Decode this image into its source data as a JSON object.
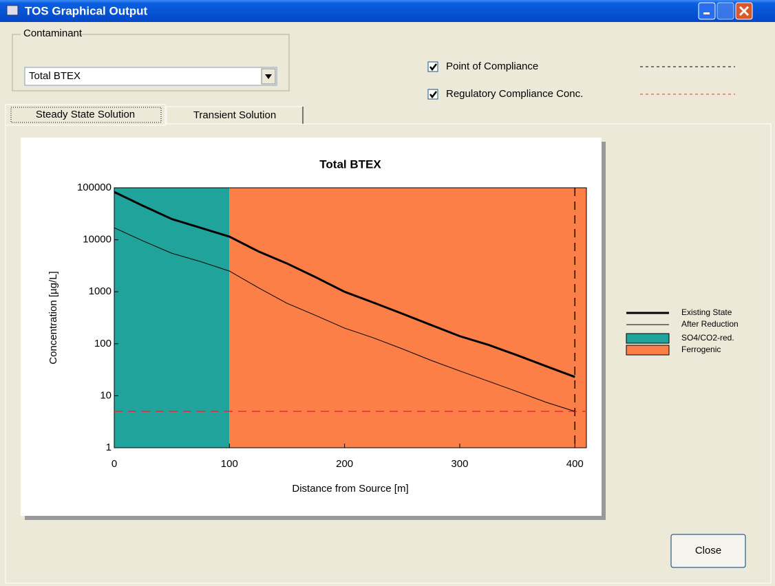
{
  "window": {
    "title": "TOS Graphical Output"
  },
  "contaminant": {
    "label": "Contaminant",
    "selected": "Total BTEX"
  },
  "options": [
    {
      "label": "Point of Compliance",
      "checked": true,
      "line_color": "#000000"
    },
    {
      "label": "Regulatory Compliance Conc.",
      "checked": true,
      "line_color": "#e03030"
    }
  ],
  "tabs": [
    "Steady State Solution",
    "Transient Solution"
  ],
  "close_button": "Close",
  "chart_data": {
    "type": "line",
    "title": "Total BTEX",
    "xlabel": "Distance from Source [m]",
    "ylabel": "Concentration  [µg/L]",
    "log_y": true,
    "xlim": [
      0,
      410
    ],
    "ylim": [
      1,
      100000
    ],
    "xticks": [
      0,
      100,
      200,
      300,
      400
    ],
    "yticks": [
      1,
      10,
      100,
      1000,
      10000,
      100000
    ],
    "x": [
      0,
      25,
      50,
      75,
      100,
      125,
      150,
      175,
      200,
      225,
      250,
      275,
      300,
      325,
      350,
      375,
      400
    ],
    "series": [
      {
        "name": "Existing State",
        "color": "#000000",
        "linewidth": 3,
        "values": [
          83000,
          45000,
          25000,
          17000,
          11500,
          6000,
          3500,
          1900,
          1000,
          620,
          380,
          230,
          140,
          95,
          60,
          37,
          23
        ]
      },
      {
        "name": "After Reduction",
        "color": "#000000",
        "linewidth": 1,
        "values": [
          17000,
          9500,
          5500,
          3800,
          2500,
          1200,
          600,
          350,
          200,
          130,
          80,
          48,
          30,
          19,
          12,
          7.5,
          5
        ]
      }
    ],
    "bands": [
      {
        "name": "SO4/CO2-red.",
        "color": "#20a39a",
        "from": 0,
        "to": 100
      },
      {
        "name": "Ferrogenic",
        "color": "#fb7f46",
        "from": 100,
        "to": 410
      }
    ],
    "reference_lines": {
      "x": 400,
      "y": 5
    }
  }
}
